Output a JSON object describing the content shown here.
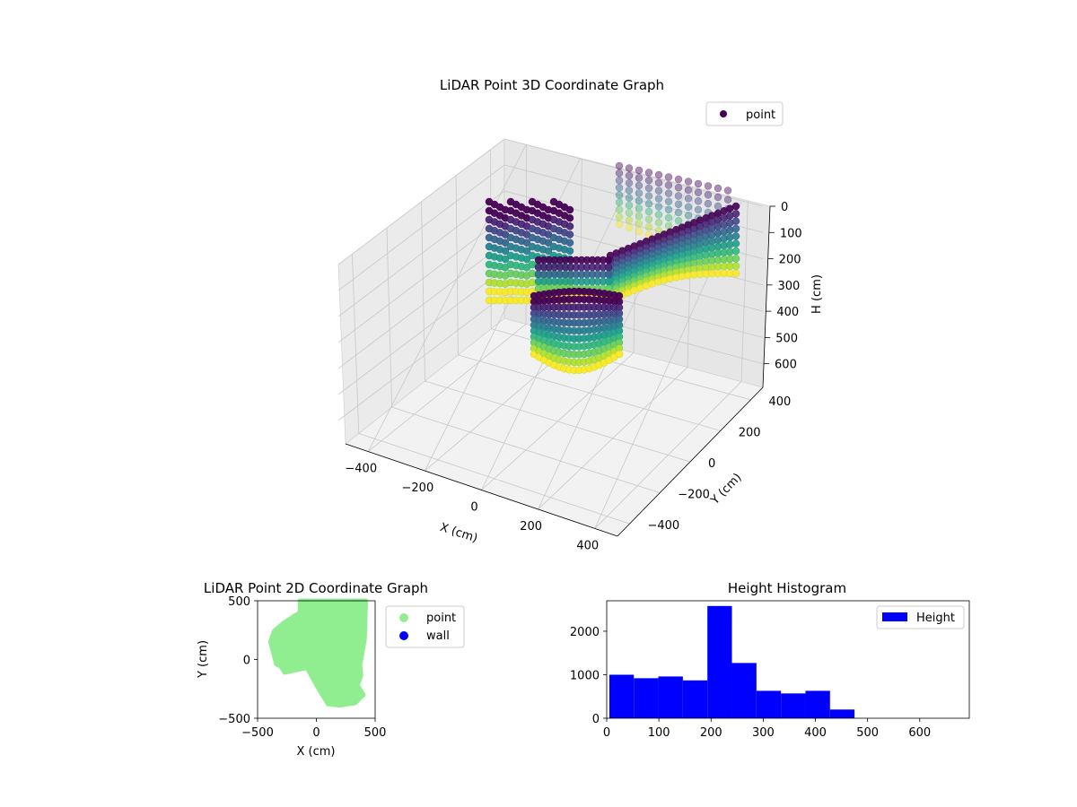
{
  "chart_data": [
    {
      "type": "scatter3d",
      "title": "LiDAR Point 3D Coordinate Graph",
      "xlabel": "X (cm)",
      "ylabel": "Y (cm)",
      "zlabel": "H (cm)",
      "xticks": [
        -400,
        -200,
        0,
        200,
        400
      ],
      "yticks": [
        -400,
        -200,
        0,
        200,
        400
      ],
      "zticks": [
        0,
        100,
        200,
        300,
        400,
        500,
        600
      ],
      "xlim": [
        -480,
        480
      ],
      "ylim": [
        -480,
        480
      ],
      "zlim": [
        0,
        690
      ],
      "zaxis_inverted": true,
      "grid": true,
      "colormap": "viridis",
      "legend": {
        "placement": "top-right",
        "entries": [
          "point"
        ],
        "colors": [
          "#440154"
        ]
      }
    },
    {
      "type": "scatter",
      "title": "LiDAR Point 2D Coordinate Graph",
      "xlabel": "X (cm)",
      "ylabel": "Y (cm)",
      "xticks": [
        -500,
        0,
        500
      ],
      "yticks": [
        -500,
        0,
        500
      ],
      "xlim": [
        -500,
        500
      ],
      "ylim": [
        -500,
        500
      ],
      "series": [
        {
          "name": "point",
          "color": "#90ee90",
          "region": [
            [
              -140,
              500
            ],
            [
              420,
              500
            ],
            [
              410,
              170
            ],
            [
              370,
              -50
            ],
            [
              380,
              -130
            ],
            [
              350,
              -220
            ],
            [
              400,
              -300
            ],
            [
              330,
              -370
            ],
            [
              200,
              -390
            ],
            [
              100,
              -380
            ],
            [
              20,
              -250
            ],
            [
              -80,
              -70
            ],
            [
              -270,
              -110
            ],
            [
              -300,
              -60
            ],
            [
              -340,
              -40
            ],
            [
              -390,
              150
            ],
            [
              -360,
              240
            ],
            [
              -280,
              310
            ],
            [
              -140,
              400
            ]
          ]
        },
        {
          "name": "wall",
          "color": "#0000ff",
          "region": []
        }
      ],
      "legend": {
        "placement": "outside-right",
        "entries": [
          "point",
          "wall"
        ],
        "colors": [
          "#90ee90",
          "#0000ff"
        ]
      }
    },
    {
      "type": "bar",
      "subtype": "histogram",
      "title": "Height Histogram",
      "xticks": [
        0,
        100,
        200,
        300,
        400,
        500,
        600
      ],
      "yticks": [
        0,
        1000,
        2000
      ],
      "xlim": [
        0,
        695
      ],
      "ylim": [
        0,
        2700
      ],
      "bins": [
        [
          5,
          52
        ],
        [
          52,
          99
        ],
        [
          99,
          146
        ],
        [
          146,
          193
        ],
        [
          193,
          240
        ],
        [
          240,
          287
        ],
        [
          287,
          334
        ],
        [
          334,
          381
        ],
        [
          381,
          428
        ],
        [
          428,
          475
        ]
      ],
      "series": [
        {
          "name": "Height",
          "color": "#0000ff",
          "values": [
            1000,
            920,
            960,
            870,
            2580,
            1270,
            630,
            570,
            630,
            200
          ]
        }
      ],
      "legend": {
        "placement": "top-right",
        "entries": [
          "Height"
        ],
        "colors": [
          "#0000ff"
        ]
      }
    }
  ]
}
